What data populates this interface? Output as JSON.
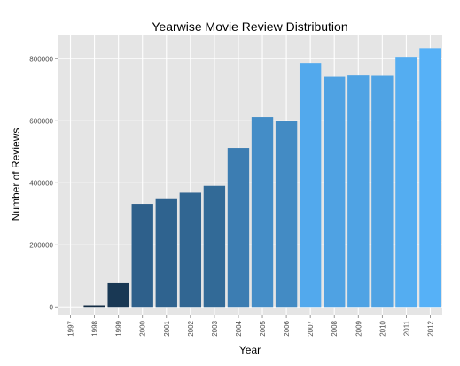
{
  "chart_data": {
    "type": "bar",
    "title": "Yearwise Movie Review Distribution",
    "xlabel": "Year",
    "ylabel": "Number of Reviews",
    "categories": [
      "1997",
      "1998",
      "1999",
      "2000",
      "2001",
      "2002",
      "2003",
      "2004",
      "2005",
      "2006",
      "2007",
      "2008",
      "2009",
      "2010",
      "2011",
      "2012"
    ],
    "values": [
      0,
      5000,
      78000,
      332000,
      350000,
      368000,
      390000,
      512000,
      612000,
      600000,
      786000,
      742000,
      746000,
      745000,
      806000,
      834000
    ],
    "y_ticks": [
      0,
      200000,
      400000,
      600000,
      800000
    ],
    "y_tick_labels": [
      "0",
      "200000",
      "400000",
      "600000",
      "800000"
    ],
    "ylim": [
      -25000,
      875000
    ],
    "grid": true,
    "legend": "none",
    "color_low": "#132b43",
    "color_high": "#56b1f7",
    "panel_background": "#e5e5e5",
    "grid_color": "#ffffff"
  }
}
